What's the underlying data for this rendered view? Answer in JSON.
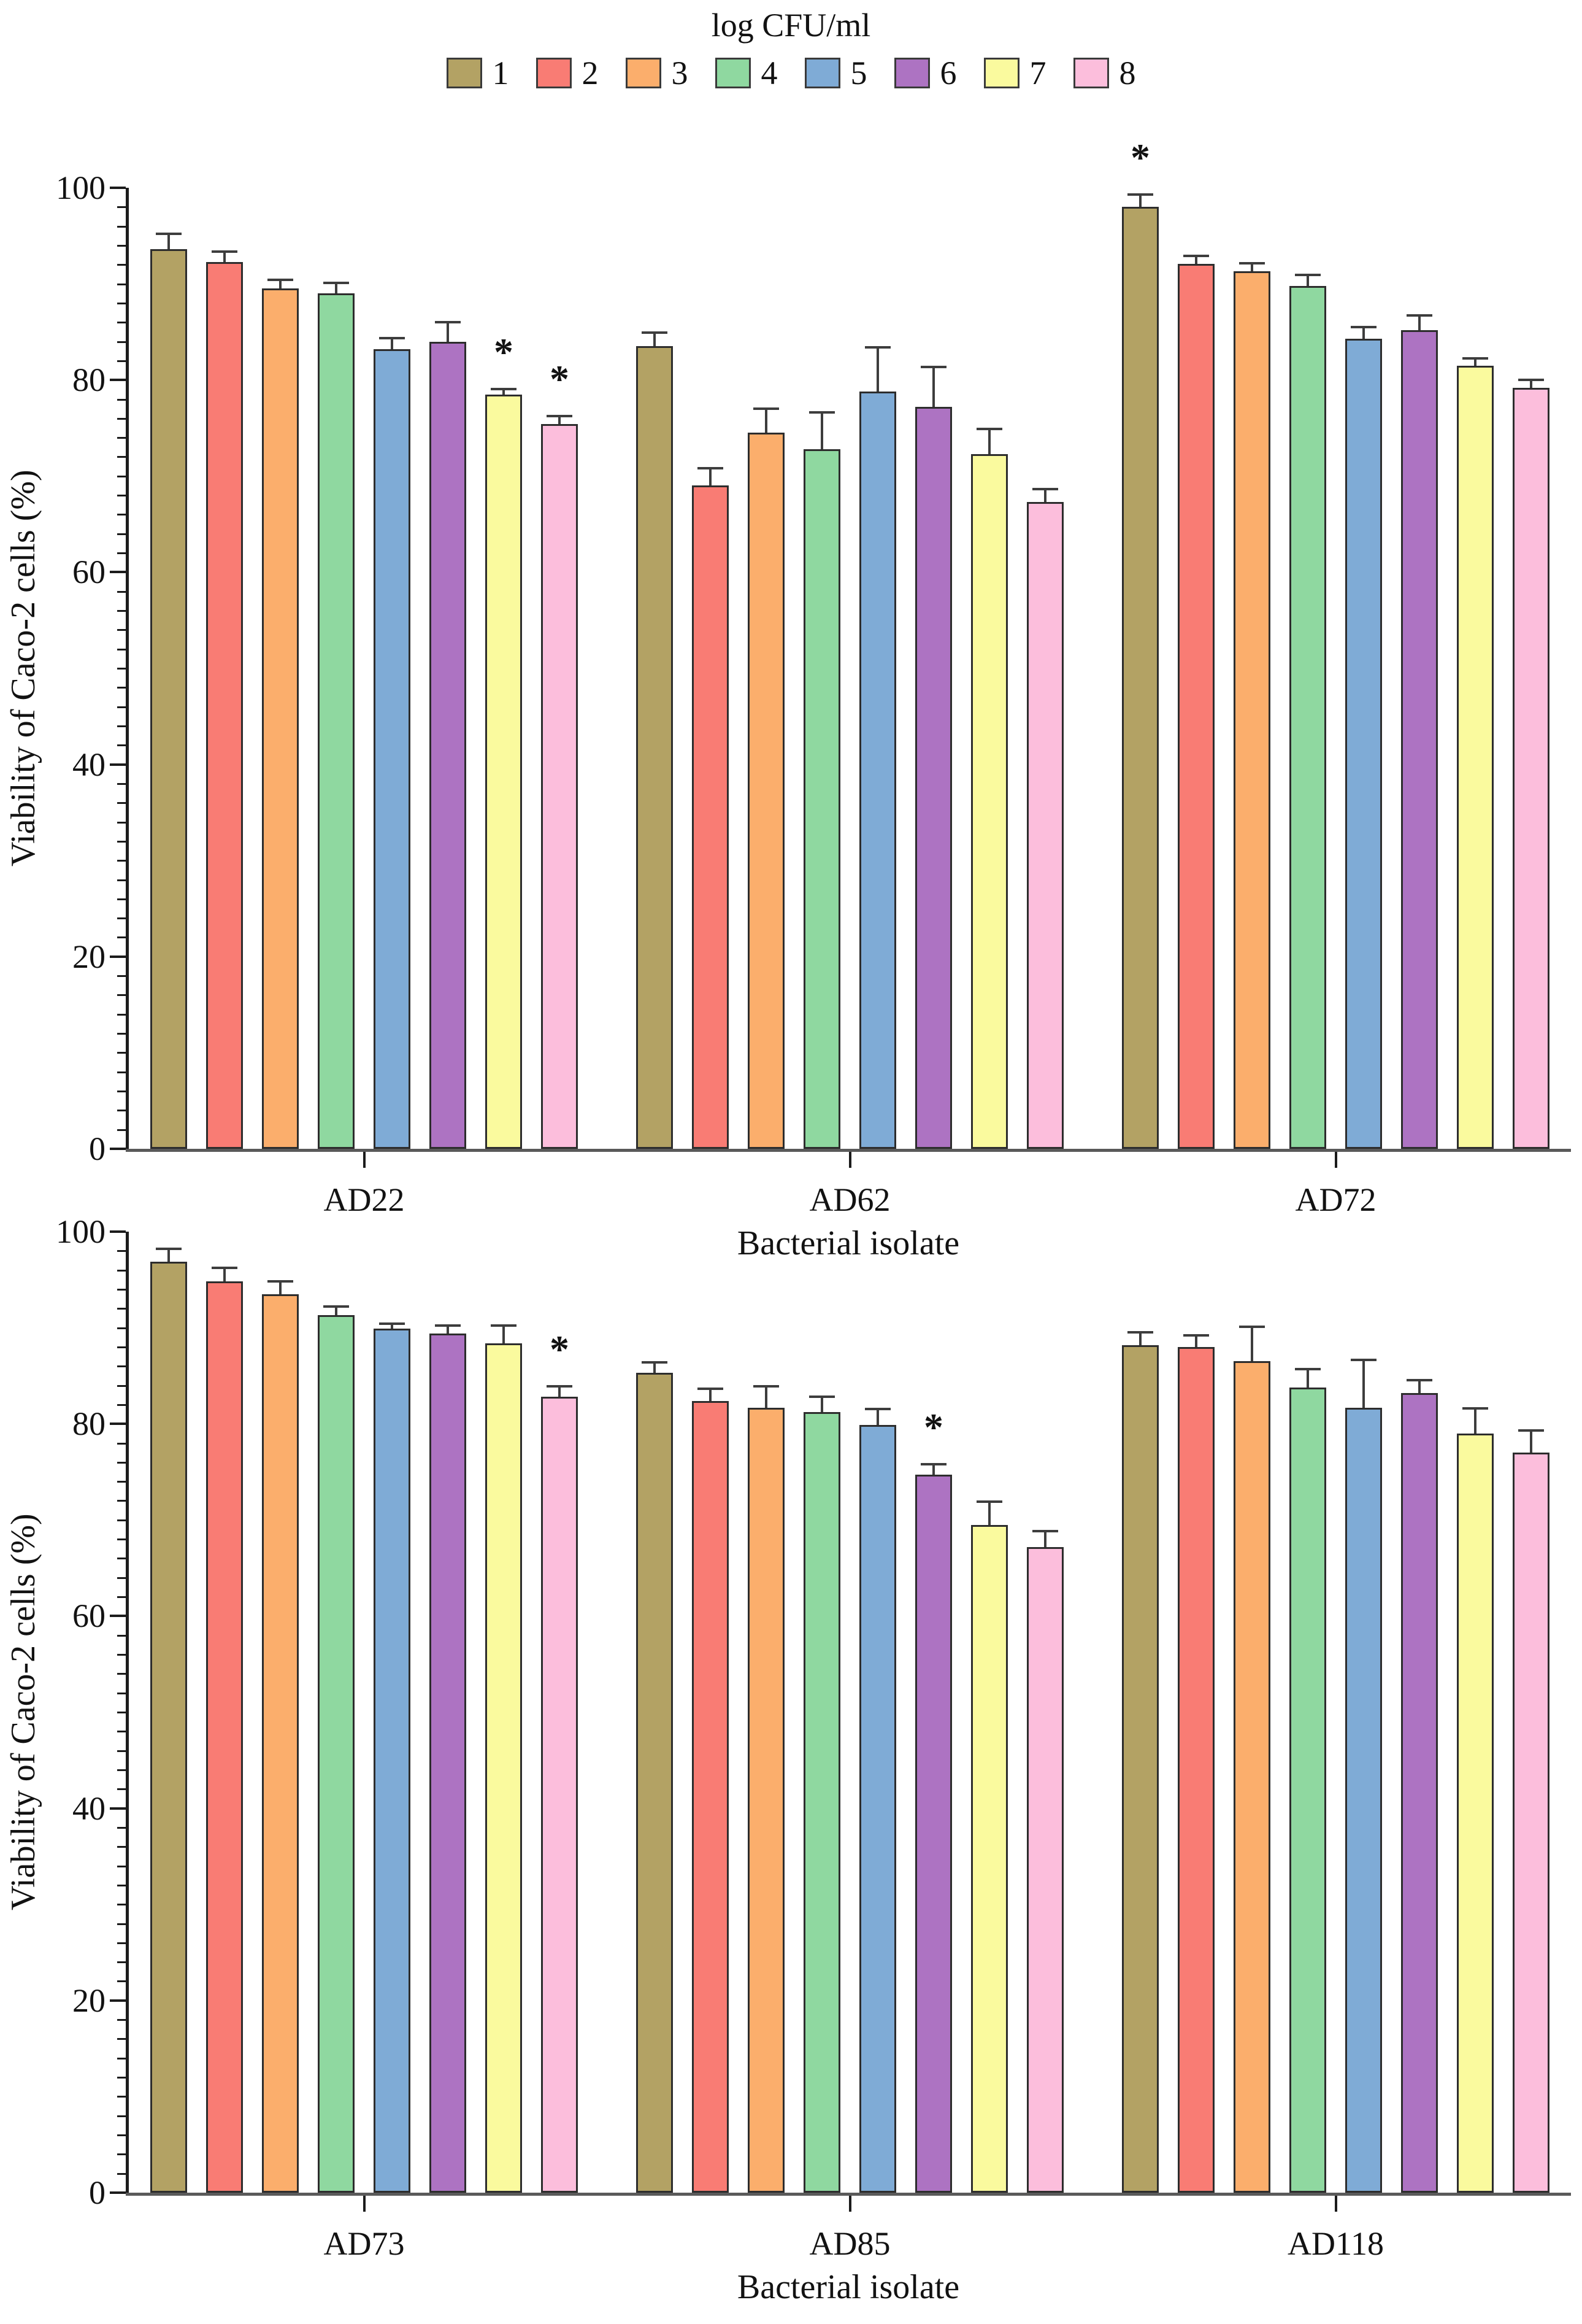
{
  "legend": {
    "title": "log CFU/ml",
    "entries": [
      {
        "label": "1",
        "color": "#b3a264"
      },
      {
        "label": "2",
        "color": "#f97c74"
      },
      {
        "label": "3",
        "color": "#fbae6c"
      },
      {
        "label": "4",
        "color": "#8fd8a0"
      },
      {
        "label": "5",
        "color": "#7fabd6"
      },
      {
        "label": "6",
        "color": "#ad73c2"
      },
      {
        "label": "7",
        "color": "#fafa9e"
      },
      {
        "label": "8",
        "color": "#fcbedc"
      }
    ]
  },
  "chart_data": [
    {
      "type": "bar",
      "title": "",
      "ylabel": "Viability of Caco-2 cells (%)",
      "xlabel": "Bacterial isolate",
      "ylim": [
        0,
        100
      ],
      "yticks": [
        0,
        20,
        40,
        60,
        80,
        100
      ],
      "minor_tick_step": 2,
      "grid": false,
      "legend_position": "top",
      "sig_marker": "*",
      "categories": [
        "AD22",
        "AD62",
        "AD72"
      ],
      "series": [
        {
          "name": "1",
          "color": "#b3a264",
          "values": [
            93.6,
            83.5,
            98.0
          ],
          "errors": [
            1.5,
            1.3,
            1.2
          ],
          "asterisk": [
            false,
            false,
            true
          ]
        },
        {
          "name": "2",
          "color": "#f97c74",
          "values": [
            92.3,
            69.0,
            92.1
          ],
          "errors": [
            0.9,
            1.7,
            0.7
          ],
          "asterisk": [
            false,
            false,
            false
          ]
        },
        {
          "name": "3",
          "color": "#fbae6c",
          "values": [
            89.5,
            74.5,
            91.3
          ],
          "errors": [
            0.8,
            2.4,
            0.7
          ],
          "asterisk": [
            false,
            false,
            false
          ]
        },
        {
          "name": "4",
          "color": "#8fd8a0",
          "values": [
            89.0,
            72.8,
            89.8
          ],
          "errors": [
            1.0,
            3.7,
            1.0
          ],
          "asterisk": [
            false,
            false,
            false
          ]
        },
        {
          "name": "5",
          "color": "#7fabd6",
          "values": [
            83.2,
            78.8,
            84.3
          ],
          "errors": [
            1.0,
            4.5,
            1.1
          ],
          "asterisk": [
            false,
            false,
            false
          ]
        },
        {
          "name": "6",
          "color": "#ad73c2",
          "values": [
            84.0,
            77.2,
            85.2
          ],
          "errors": [
            1.9,
            4.0,
            1.4
          ],
          "asterisk": [
            false,
            false,
            false
          ]
        },
        {
          "name": "7",
          "color": "#fafa9e",
          "values": [
            78.5,
            72.3,
            81.5
          ],
          "errors": [
            0.4,
            2.5,
            0.6
          ],
          "asterisk": [
            true,
            false,
            false
          ]
        },
        {
          "name": "8",
          "color": "#fcbedc",
          "values": [
            75.4,
            67.3,
            79.2
          ],
          "errors": [
            0.7,
            1.2,
            0.7
          ],
          "asterisk": [
            true,
            false,
            false
          ]
        }
      ]
    },
    {
      "type": "bar",
      "title": "",
      "ylabel": "Viability of Caco-2 cells (%)",
      "xlabel": "Bacterial isolate",
      "ylim": [
        0,
        100
      ],
      "yticks": [
        0,
        20,
        40,
        60,
        80,
        100
      ],
      "minor_tick_step": 2,
      "grid": false,
      "legend_position": "top",
      "sig_marker": "*",
      "categories": [
        "AD73",
        "AD85",
        "AD118"
      ],
      "series": [
        {
          "name": "1",
          "color": "#b3a264",
          "values": [
            96.9,
            85.3,
            88.2
          ],
          "errors": [
            1.2,
            1.0,
            1.2
          ],
          "asterisk": [
            false,
            false,
            false
          ]
        },
        {
          "name": "2",
          "color": "#f97c74",
          "values": [
            94.8,
            82.4,
            88.0
          ],
          "errors": [
            1.3,
            1.1,
            1.1
          ],
          "asterisk": [
            false,
            false,
            false
          ]
        },
        {
          "name": "3",
          "color": "#fbae6c",
          "values": [
            93.5,
            81.7,
            86.5
          ],
          "errors": [
            1.2,
            2.1,
            3.5
          ],
          "asterisk": [
            false,
            false,
            false
          ]
        },
        {
          "name": "4",
          "color": "#8fd8a0",
          "values": [
            91.3,
            81.2,
            83.8
          ],
          "errors": [
            0.8,
            1.5,
            1.8
          ],
          "asterisk": [
            false,
            false,
            false
          ]
        },
        {
          "name": "5",
          "color": "#7fabd6",
          "values": [
            89.9,
            79.9,
            81.7
          ],
          "errors": [
            0.4,
            1.5,
            4.8
          ],
          "asterisk": [
            false,
            false,
            false
          ]
        },
        {
          "name": "6",
          "color": "#ad73c2",
          "values": [
            89.4,
            74.7,
            83.2
          ],
          "errors": [
            0.7,
            1.0,
            1.2
          ],
          "asterisk": [
            false,
            true,
            false
          ]
        },
        {
          "name": "7",
          "color": "#fafa9e",
          "values": [
            88.4,
            69.5,
            79.0
          ],
          "errors": [
            1.7,
            2.3,
            2.5
          ],
          "asterisk": [
            false,
            false,
            false
          ]
        },
        {
          "name": "8",
          "color": "#fcbedc",
          "values": [
            82.8,
            67.2,
            77.0
          ],
          "errors": [
            1.0,
            1.5,
            2.2
          ],
          "asterisk": [
            true,
            false,
            false
          ]
        }
      ]
    }
  ]
}
